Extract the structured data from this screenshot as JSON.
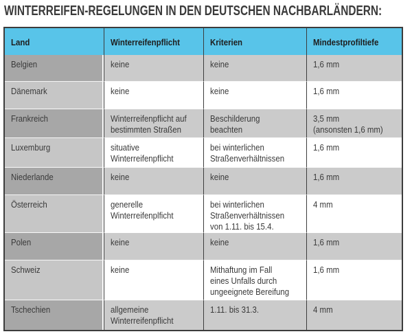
{
  "title": "WINTERREIFEN-REGELUNGEN IN DEN DEUTSCHEN NACHBARLÄNDERN:",
  "chart_data": {
    "type": "table",
    "title": "WINTERREIFEN-REGELUNGEN IN DEN DEUTSCHEN NACHBARLÄNDERN:",
    "columns": [
      "Land",
      "Winterreifenpflicht",
      "Kriterien",
      "Mindestprofiltiefe"
    ],
    "rows": [
      [
        "Belgien",
        "keine",
        "keine",
        "1,6 mm"
      ],
      [
        "Dänemark",
        "keine",
        "keine",
        "1,6 mm"
      ],
      [
        "Frankreich",
        "Winterreifenpflicht auf\nbestimmten Straßen",
        "Beschilderung\nbeachten",
        "3,5 mm\n(ansonsten 1,6 mm)"
      ],
      [
        "Luxemburg",
        "situative\nWinterreifenpflicht",
        "bei winterlichen\nStraßenverhältnissen",
        "1,6 mm"
      ],
      [
        "Niederlande",
        "keine",
        "keine",
        "1,6 mm"
      ],
      [
        "Österreich",
        "generelle\nWinterreifenplficht",
        "bei winterlichen\nStraßenverhältnissen\nvon 1.11. bis 15.4.",
        "4 mm"
      ],
      [
        "Polen",
        "keine",
        "keine",
        "1,6 mm"
      ],
      [
        "Schweiz",
        "keine",
        "Mithaftung im Fall\neines Unfalls durch\nungeeignete Bereifung",
        "1,6 mm"
      ],
      [
        "Tschechien",
        "allgemeine\nWinterreifenpflicht",
        "1.11. bis 31.3.",
        "4 mm"
      ]
    ],
    "legend": "none",
    "grid": "solid dark column separators, alternating gray/white row striping, darker first column"
  },
  "colors": {
    "header_bg": "#58c4e9",
    "border_dark": "#3c3c3c",
    "row_odd_land": "#a7a7a7",
    "row_odd_data": "#cbcbcb",
    "row_even_land": "#c6c6c6",
    "row_even_data": "#ffffff",
    "text": "#3a3a3a",
    "header_text": "#1e1e1e",
    "title_text": "#3a3a3a"
  }
}
